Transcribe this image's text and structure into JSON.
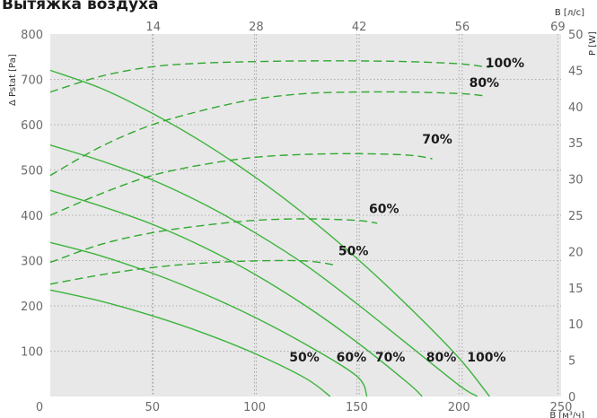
{
  "chart_data": {
    "type": "line",
    "title": "Вытяжка воздуха",
    "xlabel": "",
    "x_top_label": "В [л/с]",
    "xlabel_bottom": "В [м³/ч]",
    "ylabel_left": "Δ Pstat [Pa]",
    "ylabel_right": "P [W]",
    "xlim": [
      0,
      250
    ],
    "ylim_left": [
      0,
      800
    ],
    "ylim_right": [
      0,
      50
    ],
    "x_ticks": [
      0,
      50,
      100,
      150,
      200,
      250
    ],
    "x_top_ticks": [
      14,
      28,
      42,
      56,
      69
    ],
    "y_ticks_left": [
      100,
      200,
      300,
      400,
      500,
      600,
      700,
      800
    ],
    "y_ticks_right": [
      0,
      5,
      10,
      15,
      20,
      25,
      30,
      35,
      40,
      45,
      50
    ],
    "grid": true,
    "colors": {
      "pressure": "#3cb43c",
      "power": "#2fa82f",
      "plot_bg": "#e8e8e8"
    },
    "pressure_series": [
      {
        "name": "100%",
        "x": [
          0,
          25,
          50,
          75,
          100,
          125,
          150,
          175,
          200,
          215
        ],
        "y": [
          720,
          680,
          625,
          560,
          485,
          400,
          305,
          200,
          85,
          0
        ]
      },
      {
        "name": "80%",
        "x": [
          0,
          25,
          50,
          75,
          100,
          125,
          150,
          175,
          200,
          209
        ],
        "y": [
          555,
          520,
          478,
          425,
          362,
          290,
          205,
          115,
          25,
          0
        ]
      },
      {
        "name": "70%",
        "x": [
          0,
          25,
          50,
          75,
          100,
          125,
          150,
          175,
          182
        ],
        "y": [
          455,
          420,
          380,
          330,
          270,
          200,
          120,
          30,
          0
        ]
      },
      {
        "name": "60%",
        "x": [
          0,
          25,
          50,
          75,
          100,
          125,
          150,
          155
        ],
        "y": [
          340,
          310,
          272,
          227,
          175,
          115,
          45,
          0
        ]
      },
      {
        "name": "50%",
        "x": [
          0,
          25,
          50,
          75,
          100,
          125,
          137
        ],
        "y": [
          235,
          210,
          178,
          140,
          95,
          40,
          0
        ]
      }
    ],
    "power_series": [
      {
        "name": "100%",
        "x": [
          0,
          25,
          50,
          75,
          100,
          125,
          150,
          175,
          200,
          215
        ],
        "y": [
          42,
          44.2,
          45.5,
          46,
          46.2,
          46.3,
          46.3,
          46.2,
          45.9,
          45.4
        ]
      },
      {
        "name": "80%",
        "x": [
          0,
          25,
          50,
          75,
          100,
          125,
          150,
          175,
          200,
          212
        ],
        "y": [
          30.5,
          34.5,
          37.5,
          39.5,
          41,
          41.8,
          42,
          42,
          41.8,
          41.5
        ]
      },
      {
        "name": "70%",
        "x": [
          0,
          25,
          50,
          75,
          100,
          125,
          150,
          175,
          187
        ],
        "y": [
          25,
          28,
          30.5,
          32,
          33,
          33.4,
          33.5,
          33.3,
          32.8
        ]
      },
      {
        "name": "60%",
        "x": [
          0,
          25,
          50,
          75,
          100,
          125,
          150,
          160
        ],
        "y": [
          18.5,
          21,
          22.6,
          23.6,
          24.3,
          24.5,
          24.3,
          23.9
        ]
      },
      {
        "name": "50%",
        "x": [
          0,
          25,
          50,
          75,
          100,
          125,
          140
        ],
        "y": [
          15.5,
          16.8,
          17.8,
          18.4,
          18.7,
          18.7,
          18.1
        ]
      }
    ],
    "annotations": [
      {
        "text": "100%",
        "x": 213,
        "y": 727,
        "axis": "left"
      },
      {
        "text": "80%",
        "x": 205,
        "y": 683,
        "axis": "left"
      },
      {
        "text": "70%",
        "x": 182,
        "y": 558,
        "axis": "left"
      },
      {
        "text": "60%",
        "x": 156,
        "y": 405,
        "axis": "left"
      },
      {
        "text": "50%",
        "x": 141,
        "y": 312,
        "axis": "left"
      },
      {
        "text": "50%",
        "x": 117,
        "y": 77,
        "axis": "left"
      },
      {
        "text": "60%",
        "x": 140,
        "y": 77,
        "axis": "left"
      },
      {
        "text": "70%",
        "x": 159,
        "y": 77,
        "axis": "left"
      },
      {
        "text": "80%",
        "x": 184,
        "y": 77,
        "axis": "left"
      },
      {
        "text": "100%",
        "x": 204,
        "y": 77,
        "axis": "left"
      }
    ]
  }
}
